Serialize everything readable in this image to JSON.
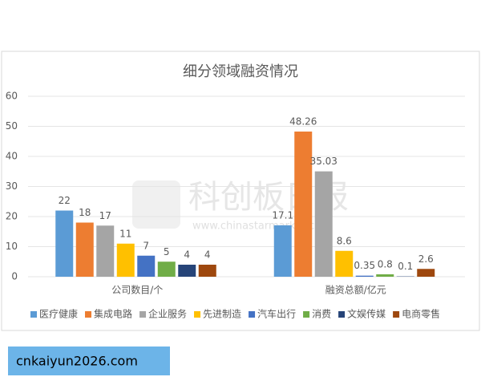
{
  "chart_data": {
    "type": "bar",
    "title": "细分领域融资情况",
    "categories": [
      "公司数目/个",
      "融资总额/亿元"
    ],
    "series": [
      {
        "name": "医疗健康",
        "color": "#5b9bd5",
        "values": [
          22,
          17.1
        ]
      },
      {
        "name": "集成电路",
        "color": "#ed7d31",
        "values": [
          18,
          48.26
        ]
      },
      {
        "name": "企业服务",
        "color": "#a5a5a5",
        "values": [
          17,
          35.03
        ]
      },
      {
        "name": "先进制造",
        "color": "#ffc000",
        "values": [
          11,
          8.6
        ]
      },
      {
        "name": "汽车出行",
        "color": "#4472c4",
        "values": [
          7,
          0.35
        ]
      },
      {
        "name": "消费",
        "color": "#70ad47",
        "values": [
          5,
          0.8
        ]
      },
      {
        "name": "文娱传媒",
        "color": "#264478",
        "values": [
          4,
          0.1
        ]
      },
      {
        "name": "电商零售",
        "color": "#9e480e",
        "values": [
          4,
          2.6
        ]
      }
    ],
    "ylim": [
      0,
      60
    ],
    "yticks": [
      0,
      10,
      20,
      30,
      40,
      50,
      60
    ],
    "grid": true,
    "legend": "bottom"
  },
  "watermark": {
    "title": "科创板日报",
    "url": "www.chinastarmarket.cn"
  },
  "footer_link": "cnkaiyun2026.com"
}
